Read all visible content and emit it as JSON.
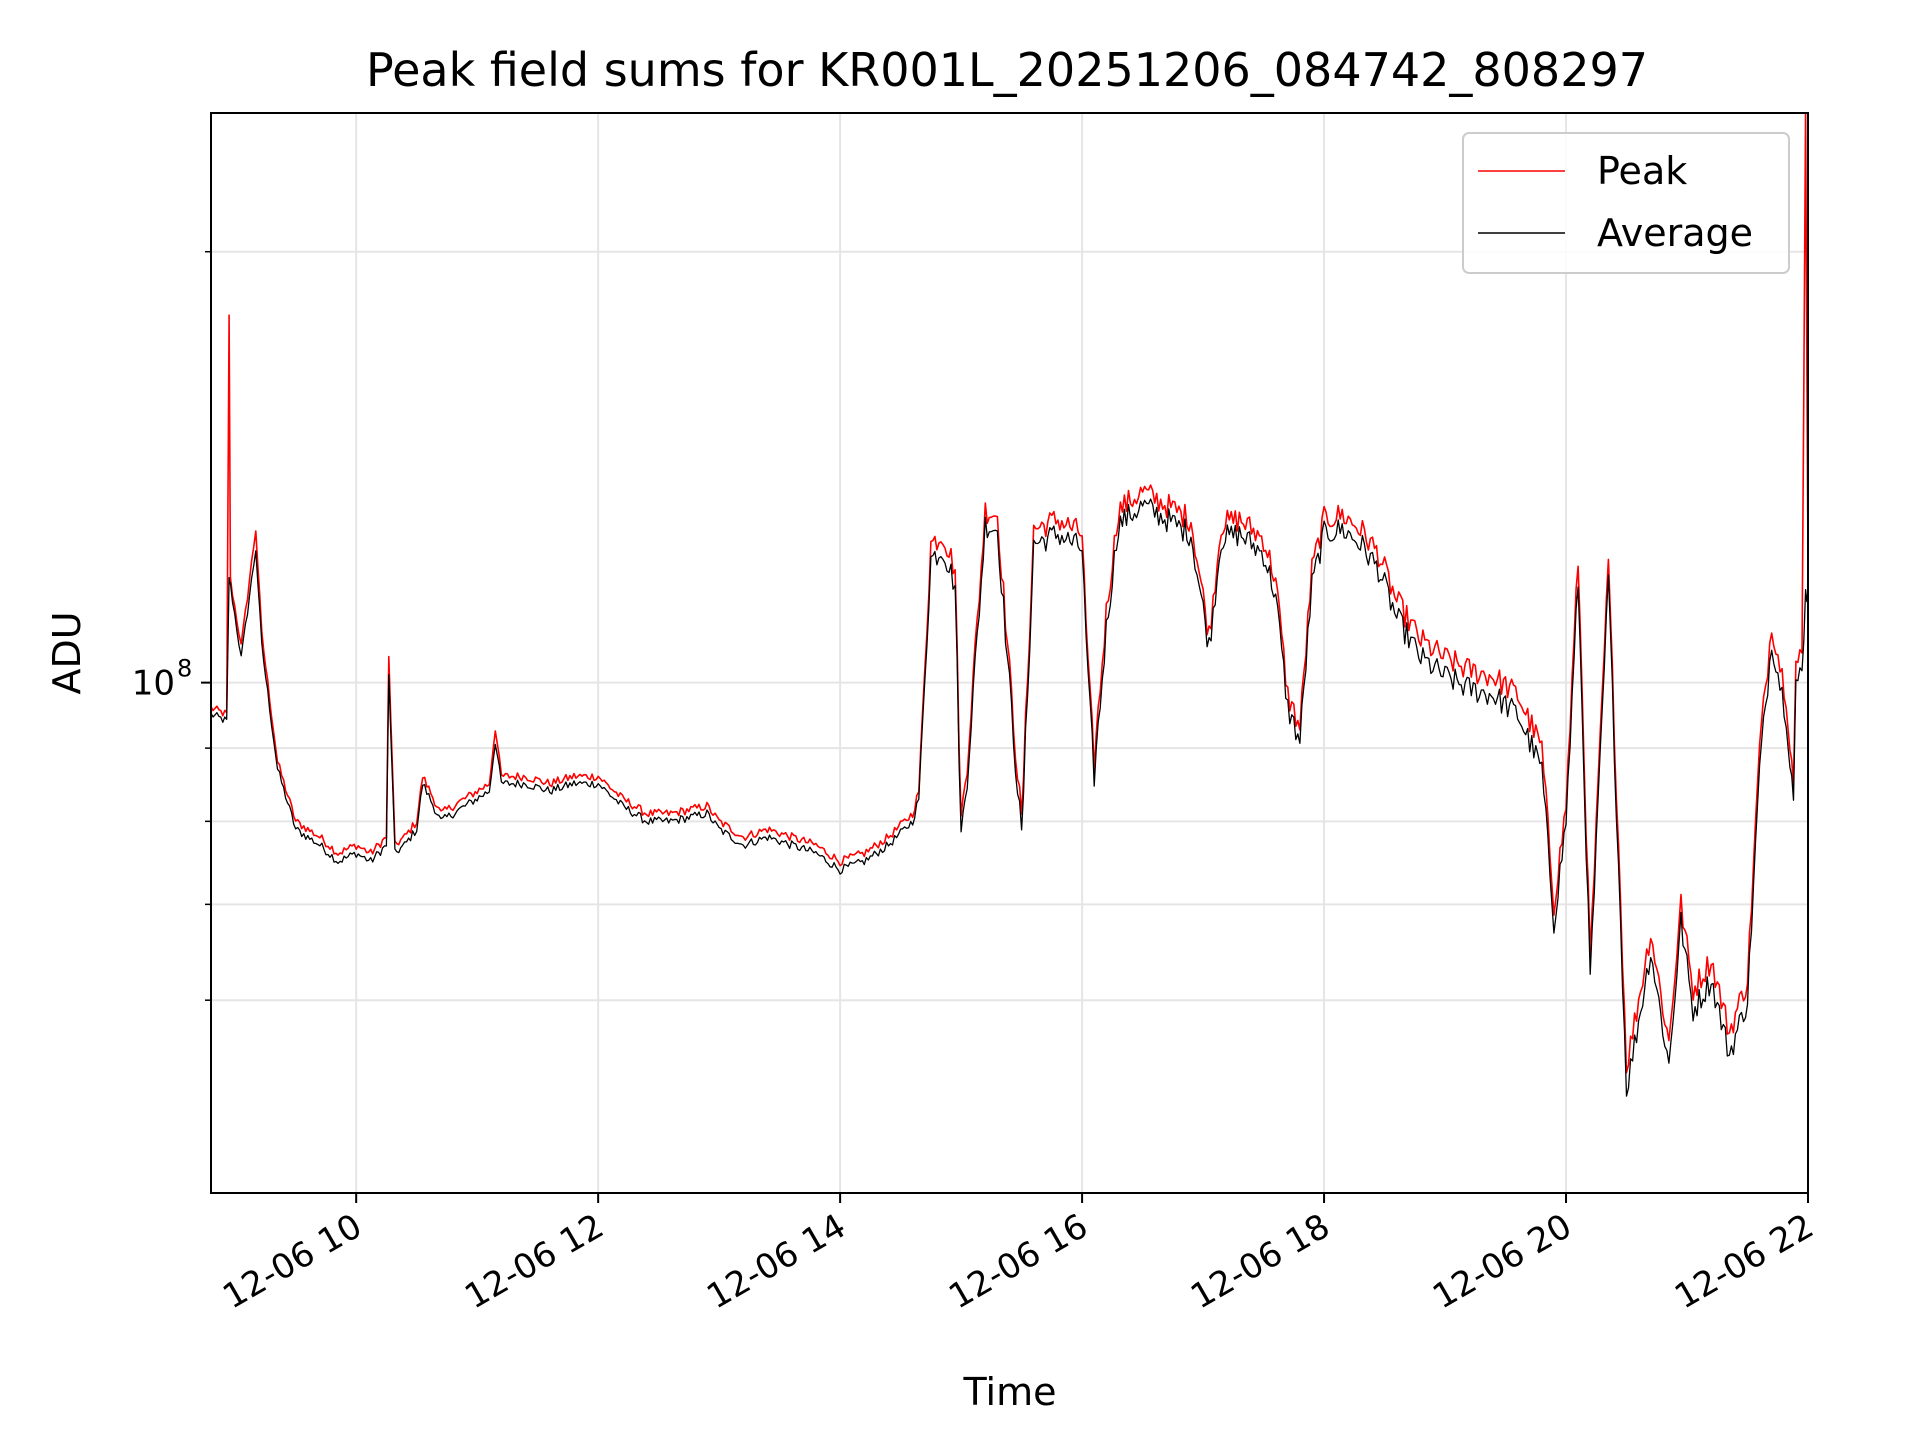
{
  "chart_data": {
    "type": "line",
    "title": "Peak field sums for KR001L_20251206_084742_808297",
    "xlabel": "Time",
    "ylabel": "ADU",
    "yscale": "log",
    "xlim": [
      8.8,
      22.0
    ],
    "ylim": [
      44000000,
      250000000
    ],
    "grid": true,
    "legend_position": "top-right",
    "x_ticks": [
      {
        "value": 10,
        "label": "12-06 10"
      },
      {
        "value": 12,
        "label": "12-06 12"
      },
      {
        "value": 14,
        "label": "12-06 14"
      },
      {
        "value": 16,
        "label": "12-06 16"
      },
      {
        "value": 18,
        "label": "12-06 18"
      },
      {
        "value": 20,
        "label": "12-06 20"
      },
      {
        "value": 22,
        "label": "12-06 22"
      }
    ],
    "y_major_tick": {
      "value": 100000000,
      "label_base": "10",
      "label_exp": "8"
    },
    "y_minor_ticks": [
      60000000,
      70000000,
      80000000,
      90000000,
      200000000
    ],
    "series": [
      {
        "name": "Peak",
        "color": "#ff0000",
        "x": [
          8.8,
          8.93,
          8.95,
          8.96,
          9.05,
          9.17,
          9.22,
          9.35,
          9.5,
          9.7,
          9.85,
          10.0,
          10.12,
          10.25,
          10.27,
          10.32,
          10.4,
          10.5,
          10.55,
          10.7,
          10.9,
          11.1,
          11.15,
          11.2,
          11.4,
          11.6,
          11.8,
          12.0,
          12.2,
          12.4,
          12.6,
          12.9,
          13.0,
          13.2,
          13.4,
          13.6,
          13.8,
          14.0,
          14.2,
          14.4,
          14.6,
          14.65,
          14.75,
          14.85,
          14.95,
          15.0,
          15.05,
          15.2,
          15.3,
          15.45,
          15.5,
          15.6,
          15.8,
          16.0,
          16.05,
          16.1,
          16.2,
          16.3,
          16.5,
          16.7,
          16.9,
          17.05,
          17.15,
          17.3,
          17.5,
          17.6,
          17.7,
          17.8,
          17.9,
          18.0,
          18.15,
          18.3,
          18.45,
          18.6,
          18.8,
          19.0,
          19.2,
          19.4,
          19.6,
          19.8,
          19.9,
          20.0,
          20.1,
          20.2,
          20.35,
          20.5,
          20.6,
          20.7,
          20.85,
          20.95,
          21.05,
          21.2,
          21.35,
          21.5,
          21.6,
          21.7,
          21.82,
          21.88,
          21.9,
          21.95,
          21.98,
          22.0
        ],
        "y": [
          96000000,
          95000000,
          180000000,
          118000000,
          106000000,
          128000000,
          108000000,
          88000000,
          80000000,
          78000000,
          76000000,
          77000000,
          76000000,
          78000000,
          104000000,
          77000000,
          78000000,
          80000000,
          86000000,
          81000000,
          83000000,
          85000000,
          93000000,
          86000000,
          86000000,
          85000000,
          86000000,
          86000000,
          83000000,
          81000000,
          81000000,
          82000000,
          80000000,
          78000000,
          79000000,
          78000000,
          77000000,
          75000000,
          76000000,
          78000000,
          81000000,
          84000000,
          125000000,
          127000000,
          120000000,
          80000000,
          88000000,
          132000000,
          131000000,
          90000000,
          80000000,
          128000000,
          130000000,
          127000000,
          102000000,
          88000000,
          112000000,
          132000000,
          136000000,
          133000000,
          130000000,
          108000000,
          129000000,
          130000000,
          126000000,
          118000000,
          98000000,
          93000000,
          120000000,
          130000000,
          131000000,
          128000000,
          123000000,
          114000000,
          107000000,
          104000000,
          102000000,
          101000000,
          98000000,
          90000000,
          70000000,
          82000000,
          122000000,
          64000000,
          121000000,
          54000000,
          60000000,
          67000000,
          56000000,
          70000000,
          61000000,
          64000000,
          57000000,
          62000000,
          90000000,
          110000000,
          98000000,
          85000000,
          102000000,
          106000000,
          250000000,
          120000000
        ]
      },
      {
        "name": "Average",
        "color": "#000000",
        "x": [
          8.8,
          8.93,
          8.95,
          8.96,
          9.05,
          9.17,
          9.22,
          9.35,
          9.5,
          9.7,
          9.85,
          10.0,
          10.12,
          10.25,
          10.27,
          10.32,
          10.4,
          10.5,
          10.55,
          10.7,
          10.9,
          11.1,
          11.15,
          11.2,
          11.4,
          11.6,
          11.8,
          12.0,
          12.2,
          12.4,
          12.6,
          12.9,
          13.0,
          13.2,
          13.4,
          13.6,
          13.8,
          14.0,
          14.2,
          14.4,
          14.6,
          14.65,
          14.75,
          14.85,
          14.95,
          15.0,
          15.05,
          15.2,
          15.3,
          15.45,
          15.5,
          15.6,
          15.8,
          16.0,
          16.05,
          16.1,
          16.2,
          16.3,
          16.5,
          16.7,
          16.9,
          17.05,
          17.15,
          17.3,
          17.5,
          17.6,
          17.7,
          17.8,
          17.9,
          18.0,
          18.15,
          18.3,
          18.45,
          18.6,
          18.8,
          19.0,
          19.2,
          19.4,
          19.6,
          19.8,
          19.9,
          20.0,
          20.1,
          20.2,
          20.35,
          20.5,
          20.6,
          20.7,
          20.85,
          20.95,
          21.05,
          21.2,
          21.35,
          21.5,
          21.6,
          21.7,
          21.82,
          21.88,
          21.9,
          21.95,
          21.98,
          22.0
        ],
        "y": [
          95000000,
          94000000,
          118000000,
          117000000,
          104000000,
          124000000,
          106000000,
          87000000,
          79000000,
          77000000,
          75000000,
          76000000,
          75000000,
          77000000,
          101000000,
          76000000,
          77000000,
          79000000,
          85000000,
          80000000,
          82000000,
          84000000,
          91000000,
          85000000,
          85000000,
          84000000,
          85000000,
          85000000,
          82000000,
          80000000,
          80000000,
          81000000,
          79000000,
          77000000,
          78000000,
          77000000,
          76000000,
          74000000,
          75000000,
          77000000,
          80000000,
          83000000,
          122000000,
          124000000,
          117000000,
          78000000,
          86000000,
          129000000,
          128000000,
          88000000,
          78000000,
          125000000,
          127000000,
          124000000,
          100000000,
          86000000,
          109000000,
          129000000,
          133000000,
          130000000,
          127000000,
          106000000,
          126000000,
          127000000,
          123000000,
          115000000,
          96000000,
          91000000,
          117000000,
          127000000,
          128000000,
          125000000,
          120000000,
          111000000,
          104000000,
          101000000,
          99000000,
          98000000,
          95000000,
          87000000,
          68000000,
          80000000,
          118000000,
          62000000,
          118000000,
          52000000,
          58000000,
          65000000,
          54000000,
          68000000,
          59000000,
          62000000,
          55000000,
          60000000,
          87000000,
          107000000,
          95000000,
          83000000,
          99000000,
          103000000,
          115000000,
          116000000
        ]
      }
    ]
  }
}
